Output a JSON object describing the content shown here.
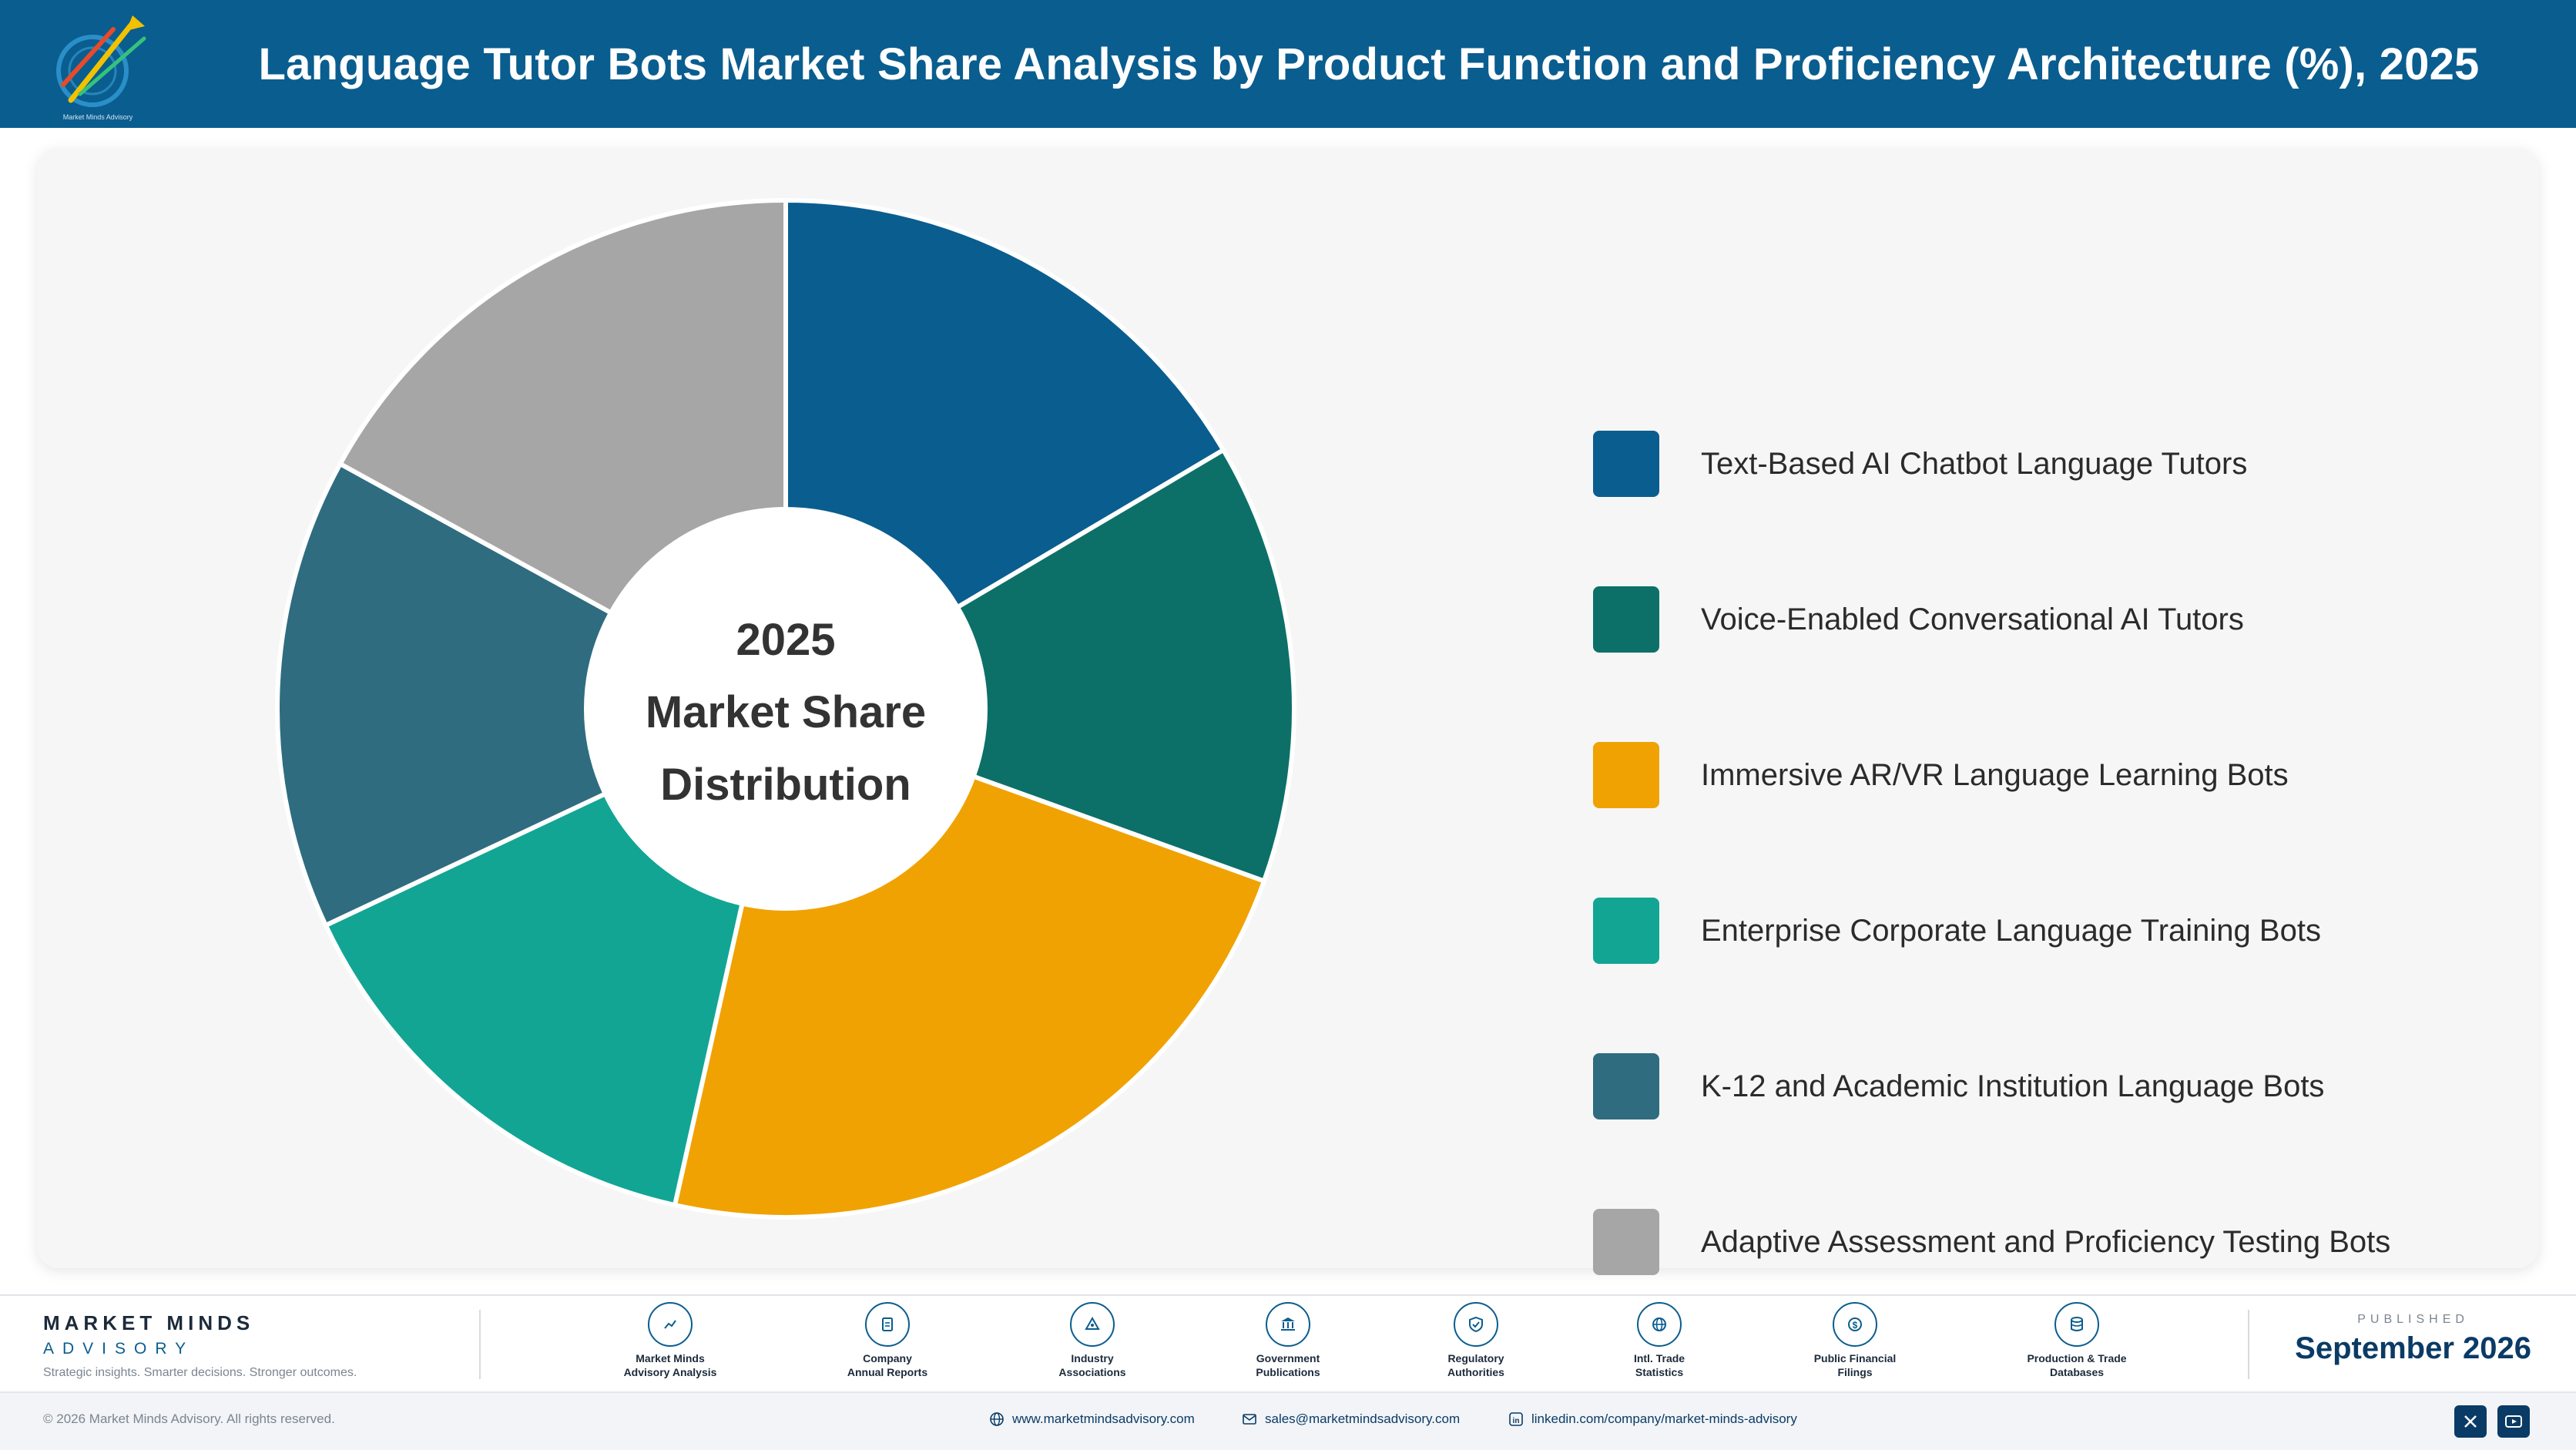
{
  "header": {
    "title": "Language Tutor Bots Market Share Analysis by Product Function and Proficiency Architecture (%), 2025",
    "logo_text": "Market Minds Advisory"
  },
  "chart_data": {
    "type": "pie",
    "style": "donut",
    "title": "Language Tutor Bots Market Share Analysis by Product Function and Proficiency Architecture (%), 2025",
    "center_label": [
      "2025",
      "Market Share",
      "Distribution"
    ],
    "legend_position": "right",
    "categories": [
      "Text-Based AI Chatbot Language Tutors",
      "Voice-Enabled Conversational AI Tutors",
      "Immersive AR/VR Language Learning Bots",
      "Enterprise Corporate Language Training Bots",
      "K-12 and Academic Institution Language Bots",
      "Adaptive Assessment and Proficiency Testing Bots"
    ],
    "values": [
      16.5,
      14.0,
      23.0,
      14.5,
      15.0,
      17.0
    ],
    "colors": [
      "#0a5d8f",
      "#0c7068",
      "#f0a202",
      "#12a594",
      "#2f6c80",
      "#a6a6a6"
    ]
  },
  "footer": {
    "brand_name": "MARKET MINDS",
    "brand_sub": "ADVISORY",
    "tagline": "Strategic insights. Smarter decisions. Stronger outcomes.",
    "sources": [
      {
        "label": "Market Minds\nAdvisory Analysis",
        "icon": "chart-line-icon"
      },
      {
        "label": "Company\nAnnual Reports",
        "icon": "document-icon"
      },
      {
        "label": "Industry\nAssociations",
        "icon": "network-icon"
      },
      {
        "label": "Government\nPublications",
        "icon": "government-building-icon"
      },
      {
        "label": "Regulatory\nAuthorities",
        "icon": "shield-check-icon"
      },
      {
        "label": "Intl. Trade\nStatistics",
        "icon": "globe-icon"
      },
      {
        "label": "Public Financial\nFilings",
        "icon": "dollar-coin-icon"
      },
      {
        "label": "Production & Trade\nDatabases",
        "icon": "database-icon"
      }
    ],
    "published_label": "PUBLISHED",
    "published_date": "September 2026",
    "copyright": "© 2026 Market Minds Advisory. All rights reserved.",
    "website": "www.marketmindsadvisory.com",
    "email": "sales@marketmindsadvisory.com",
    "linkedin": "linkedin.com/company/market-minds-advisory"
  }
}
